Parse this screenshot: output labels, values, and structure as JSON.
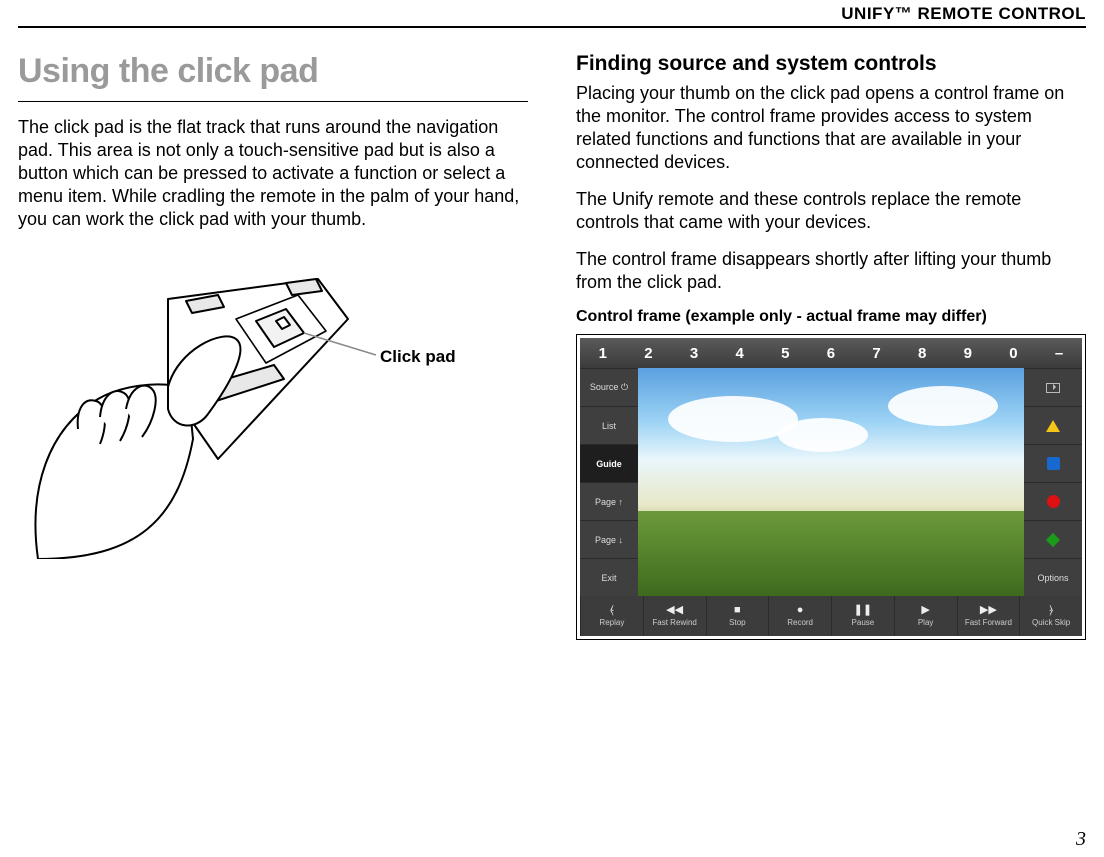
{
  "header": {
    "title": "UNIFY™ REMOTE CONTROL"
  },
  "left": {
    "section_title": "Using the click pad",
    "intro": "The click pad is the flat track that runs around the navigation pad. This area is not only a touch-sensitive pad but is also a button which can be pressed to activate a function or select a menu item. While cradling the remote in the palm of your hand, you can work the click pad with your thumb.",
    "callout_label": "Click pad"
  },
  "right": {
    "subhead": "Finding source and system controls",
    "p1": "Placing your thumb on the click pad opens a control frame on the monitor. The control frame provides access to system related functions and functions that are available in your connected devices.",
    "p2": "The Unify remote and these controls replace the remote controls that came with your devices.",
    "p3": "The control frame disappears shortly after lifting your thumb from the click pad.",
    "caption": "Control frame (example only - actual frame may differ)"
  },
  "control_frame": {
    "top_row": [
      "1",
      "2",
      "3",
      "4",
      "5",
      "6",
      "7",
      "8",
      "9",
      "0",
      "–"
    ],
    "left_items": [
      {
        "label": "Source ⏻",
        "selected": false
      },
      {
        "label": "List",
        "selected": false
      },
      {
        "label": "Guide",
        "selected": true
      },
      {
        "label": "Page ↑",
        "selected": false
      },
      {
        "label": "Page ↓",
        "selected": false
      },
      {
        "label": "Exit",
        "selected": false
      }
    ],
    "right_items": [
      {
        "kind": "aspect"
      },
      {
        "kind": "yellow"
      },
      {
        "kind": "blue"
      },
      {
        "kind": "red"
      },
      {
        "kind": "green"
      },
      {
        "kind": "options",
        "label": "Options"
      }
    ],
    "bottom_items": [
      {
        "icon": "⦑",
        "label": "Replay"
      },
      {
        "icon": "◀◀",
        "label": "Fast Rewind"
      },
      {
        "icon": "■",
        "label": "Stop"
      },
      {
        "icon": "●",
        "label": "Record"
      },
      {
        "icon": "❚❚",
        "label": "Pause"
      },
      {
        "icon": "▶",
        "label": "Play"
      },
      {
        "icon": "▶▶",
        "label": "Fast Forward"
      },
      {
        "icon": "⦒",
        "label": "Quick Skip"
      }
    ],
    "colors": {
      "frame_bg": "#2b2b2b",
      "bar_bg": "#3f3f3f",
      "selected_bg": "#1e1e1e"
    }
  },
  "page_number": "3"
}
